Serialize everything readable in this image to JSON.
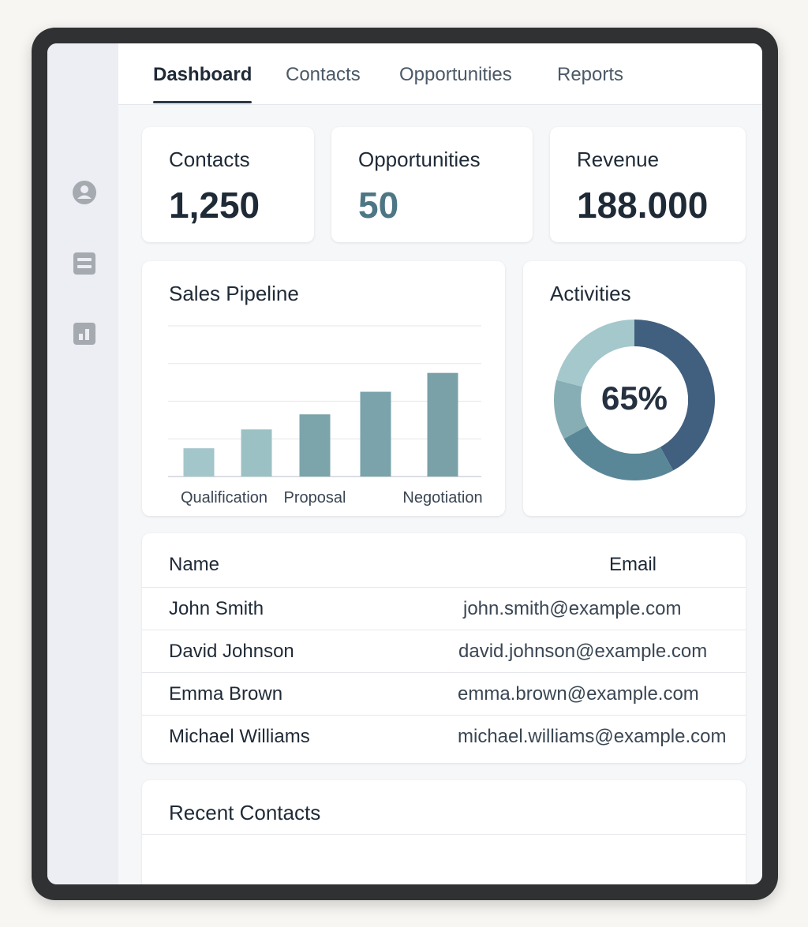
{
  "tabs": [
    {
      "label": "Dashboard",
      "active": true
    },
    {
      "label": "Contacts",
      "active": false
    },
    {
      "label": "Opportunities",
      "active": false
    },
    {
      "label": "Reports",
      "active": false
    }
  ],
  "sidebar": {
    "icons": [
      "user-circle-icon",
      "list-icon",
      "bar-chart-icon"
    ]
  },
  "stats": {
    "contacts": {
      "label": "Contacts",
      "value": "1,250"
    },
    "opportunities": {
      "label": "Opportunities",
      "value": "50"
    },
    "revenue": {
      "label": "Revenue",
      "value": "188.000"
    }
  },
  "pipeline": {
    "title": "Sales Pipeline"
  },
  "activities": {
    "title": "Activities",
    "percent_label": "65%"
  },
  "chart_data": [
    {
      "type": "bar",
      "title": "Sales Pipeline",
      "categories": [
        "Qualification",
        "",
        "Proposal",
        "",
        "Negotiation"
      ],
      "values": [
        1.5,
        2.5,
        3.3,
        4.5,
        5.5
      ],
      "ylim": [
        0,
        8
      ],
      "grid": true,
      "colors": [
        "#a3c6ca",
        "#9cc1c4",
        "#7ba4ab",
        "#7aa3ab",
        "#7aa0a8"
      ]
    },
    {
      "type": "pie",
      "title": "Activities",
      "center_label": "65%",
      "values": [
        42,
        25,
        12,
        21
      ],
      "colors": [
        "#415f7e",
        "#5a8798",
        "#87aeb4",
        "#a4c8cc"
      ]
    }
  ],
  "table": {
    "headers": {
      "name": "Name",
      "email": "Email"
    },
    "rows": [
      {
        "name": "John Smith",
        "email": "john.smith@example.com"
      },
      {
        "name": "David Johnson",
        "email": "david.johnson@example.com"
      },
      {
        "name": "Emma Brown",
        "email": "emma.brown@example.com"
      },
      {
        "name": "Michael Williams",
        "email": "michael.williams@example.com"
      }
    ]
  },
  "recent": {
    "title": "Recent Contacts"
  },
  "colors": {
    "frame": "#2f3133",
    "accent": "#4d7785",
    "text": "#1f2a37"
  }
}
